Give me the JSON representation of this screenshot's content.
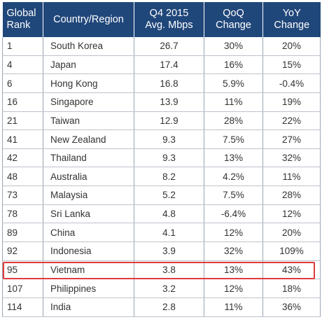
{
  "table": {
    "headers": [
      [
        "Global",
        "Rank"
      ],
      [
        "Country/Region"
      ],
      [
        "Q4 2015",
        "Avg. Mbps"
      ],
      [
        "QoQ",
        "Change"
      ],
      [
        "YoY",
        "Change"
      ]
    ],
    "rows": [
      [
        "1",
        "South Korea",
        "26.7",
        "30%",
        "20%"
      ],
      [
        "4",
        "Japan",
        "17.4",
        "16%",
        "15%"
      ],
      [
        "6",
        "Hong Kong",
        "16.8",
        "5.9%",
        "-0.4%"
      ],
      [
        "16",
        "Singapore",
        "13.9",
        "11%",
        "19%"
      ],
      [
        "21",
        "Taiwan",
        "12.9",
        "28%",
        "22%"
      ],
      [
        "41",
        "New Zealand",
        "9.3",
        "7.5%",
        "27%"
      ],
      [
        "42",
        "Thailand",
        "9.3",
        "13%",
        "32%"
      ],
      [
        "48",
        "Australia",
        "8.2",
        "4.2%",
        "11%"
      ],
      [
        "73",
        "Malaysia",
        "5.2",
        "7.5%",
        "28%"
      ],
      [
        "78",
        "Sri Lanka",
        "4.8",
        "-6.4%",
        "12%"
      ],
      [
        "89",
        "China",
        "4.1",
        "12%",
        "20%"
      ],
      [
        "92",
        "Indonesia",
        "3.9",
        "32%",
        "109%"
      ],
      [
        "95",
        "Vietnam",
        "3.8",
        "13%",
        "43%"
      ],
      [
        "107",
        "Philippines",
        "3.2",
        "12%",
        "18%"
      ],
      [
        "114",
        "India",
        "2.8",
        "11%",
        "36%"
      ]
    ],
    "highlighted_row": "Vietnam"
  },
  "colors": {
    "header_bg": "#20477a",
    "highlight": "#e03b3b"
  }
}
